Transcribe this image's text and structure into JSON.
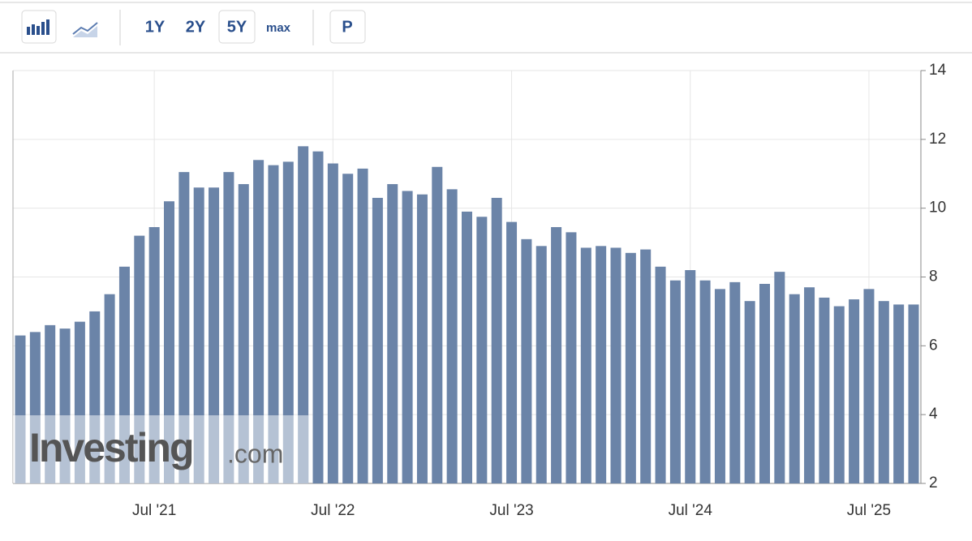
{
  "toolbar": {
    "buttons": [
      "1Y",
      "2Y",
      "5Y",
      "max",
      "P"
    ],
    "active": "5Y"
  },
  "watermark": {
    "brand": "Investing",
    "suffix": ".com"
  },
  "chart_data": {
    "type": "bar",
    "color": "#6b84a8",
    "categories": [
      null,
      null,
      null,
      null,
      null,
      null,
      null,
      null,
      null,
      "Jul '21",
      null,
      null,
      null,
      null,
      null,
      null,
      null,
      null,
      null,
      null,
      null,
      "Jul '22",
      null,
      null,
      null,
      null,
      null,
      null,
      null,
      null,
      null,
      null,
      null,
      "Jul '23",
      null,
      null,
      null,
      null,
      null,
      null,
      null,
      null,
      null,
      null,
      null,
      "Jul '24",
      null,
      null,
      null,
      null,
      null,
      null,
      null,
      null,
      null,
      null,
      null,
      "Jul '25",
      null,
      null,
      null
    ],
    "values": [
      6.3,
      6.4,
      6.6,
      6.5,
      6.7,
      7.0,
      7.5,
      8.3,
      9.2,
      9.45,
      10.2,
      11.05,
      10.6,
      10.6,
      11.05,
      10.7,
      11.4,
      11.25,
      11.35,
      11.8,
      11.65,
      11.3,
      11.0,
      11.15,
      10.3,
      10.7,
      10.5,
      10.4,
      11.2,
      10.55,
      9.9,
      9.75,
      10.3,
      9.6,
      9.1,
      8.9,
      9.45,
      9.3,
      8.85,
      8.9,
      8.85,
      8.7,
      8.8,
      8.3,
      7.9,
      8.2,
      7.9,
      7.65,
      7.85,
      7.3,
      7.8,
      8.15,
      7.5,
      7.7,
      7.4,
      7.15,
      7.35,
      7.65,
      7.3,
      7.2,
      7.2
    ],
    "ylim": [
      2,
      14
    ],
    "yticks": [
      2,
      4,
      6,
      8,
      10,
      12,
      14
    ],
    "grid": true
  }
}
